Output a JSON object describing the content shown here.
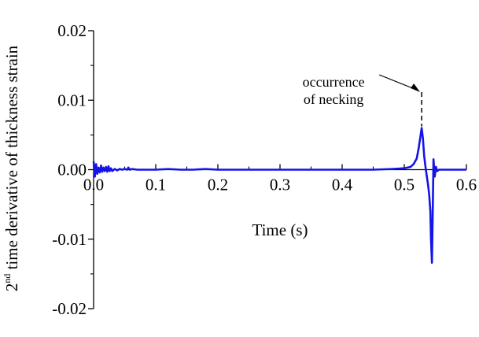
{
  "chart_data": {
    "type": "line",
    "xlabel": "Time (s)",
    "ylabel": {
      "prefix": "2",
      "superscript": "nd",
      "text": " time derivative of thickness strain"
    },
    "xlim": [
      0.0,
      0.6
    ],
    "ylim": [
      -0.02,
      0.02
    ],
    "x_ticks": [
      {
        "value": 0.0,
        "label": "0.0"
      },
      {
        "value": 0.1,
        "label": "0.1"
      },
      {
        "value": 0.2,
        "label": "0.2"
      },
      {
        "value": 0.3,
        "label": "0.3"
      },
      {
        "value": 0.4,
        "label": "0.4"
      },
      {
        "value": 0.5,
        "label": "0.5"
      },
      {
        "value": 0.6,
        "label": "0.6"
      }
    ],
    "y_ticks": [
      {
        "value": 0.02,
        "label": "0.02"
      },
      {
        "value": 0.01,
        "label": "0.01"
      },
      {
        "value": 0.0,
        "label": "0.00"
      },
      {
        "value": -0.01,
        "label": "-0.01"
      },
      {
        "value": -0.02,
        "label": "-0.02"
      }
    ],
    "grid": false,
    "series": [
      {
        "color": "#1414e6",
        "x": [
          0.0,
          0.002,
          0.004,
          0.006,
          0.008,
          0.01,
          0.012,
          0.014,
          0.016,
          0.018,
          0.02,
          0.022,
          0.024,
          0.026,
          0.028,
          0.03,
          0.034,
          0.038,
          0.042,
          0.046,
          0.05,
          0.054,
          0.056,
          0.058,
          0.062,
          0.07,
          0.08,
          0.1,
          0.12,
          0.14,
          0.16,
          0.18,
          0.2,
          0.25,
          0.3,
          0.35,
          0.4,
          0.45,
          0.48,
          0.5,
          0.51,
          0.515,
          0.52,
          0.523,
          0.526,
          0.528,
          0.53,
          0.532,
          0.534,
          0.536,
          0.538,
          0.54,
          0.542,
          0.543,
          0.5445,
          0.5455,
          0.547,
          0.549,
          0.551,
          0.553,
          0.556,
          0.56,
          0.58,
          0.6
        ],
        "y": [
          0.0012,
          -0.001,
          0.0008,
          -0.0006,
          0.0003,
          -0.0004,
          0.0006,
          -0.0003,
          0.0003,
          -0.0002,
          0.0004,
          -0.0003,
          0.0005,
          -0.0002,
          0.0002,
          -0.0002,
          0.0001,
          -0.0001,
          0.0001,
          0.0,
          0.0001,
          0.0,
          0.0003,
          0.0,
          0.0001,
          0.0,
          0.0,
          0.0,
          0.0001,
          0.0,
          0.0,
          0.0001,
          0.0,
          0.0,
          0.0,
          0.0,
          0.0,
          0.0,
          0.0001,
          0.0002,
          0.0004,
          0.0008,
          0.0016,
          0.003,
          0.0048,
          0.006,
          0.0045,
          0.002,
          0.0005,
          -0.0008,
          -0.002,
          -0.0035,
          -0.006,
          -0.01,
          -0.0134,
          -0.008,
          0.0015,
          -0.001,
          0.0004,
          -0.0002,
          0.0,
          0.0,
          0.0,
          0.0
        ]
      }
    ],
    "annotations": [
      {
        "lines": [
          "occurrence",
          "of necking"
        ],
        "x": 0.528,
        "y": 0.006
      }
    ]
  }
}
